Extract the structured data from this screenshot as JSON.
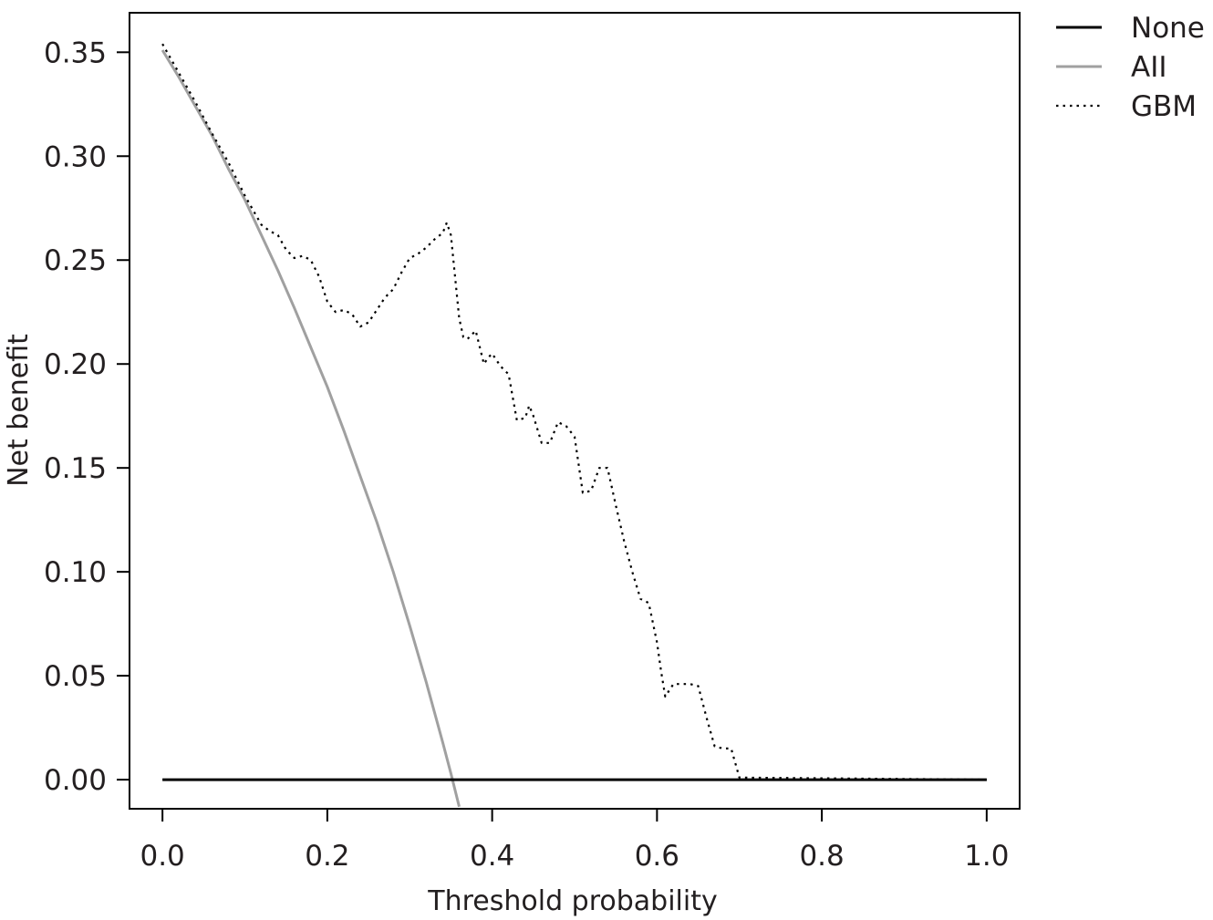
{
  "chart_data": {
    "type": "line",
    "xlabel": "Threshold probability",
    "ylabel": "Net benefit",
    "xlim": [
      -0.04,
      1.04
    ],
    "ylim": [
      -0.014,
      0.369
    ],
    "xticks": [
      0.0,
      0.2,
      0.4,
      0.6,
      0.8,
      1.0
    ],
    "xtick_labels": [
      "0.0",
      "0.2",
      "0.4",
      "0.6",
      "0.8",
      "1.0"
    ],
    "yticks": [
      0.0,
      0.05,
      0.1,
      0.15,
      0.2,
      0.25,
      0.3,
      0.35
    ],
    "ytick_labels": [
      "0.00",
      "0.05",
      "0.10",
      "0.15",
      "0.20",
      "0.25",
      "0.30",
      "0.35"
    ],
    "grid": false,
    "legend_position": "outside-top-right",
    "series": [
      {
        "name": "None",
        "color": "#000000",
        "style": "solid",
        "x": [
          0.0,
          1.0
        ],
        "y": [
          0.0,
          0.0
        ]
      },
      {
        "name": "AII",
        "color": "#a0a0a0",
        "style": "solid",
        "x": [
          0.0,
          0.02,
          0.04,
          0.06,
          0.08,
          0.1,
          0.12,
          0.14,
          0.16,
          0.18,
          0.2,
          0.22,
          0.24,
          0.26,
          0.28,
          0.3,
          0.32,
          0.34,
          0.35,
          0.36
        ],
        "y": [
          0.351,
          0.338,
          0.324,
          0.31,
          0.294,
          0.279,
          0.262,
          0.245,
          0.227,
          0.208,
          0.189,
          0.168,
          0.146,
          0.124,
          0.1,
          0.074,
          0.047,
          0.018,
          0.003,
          -0.013
        ]
      },
      {
        "name": "GBM",
        "color": "#000000",
        "style": "dotted",
        "x": [
          0.0,
          0.02,
          0.04,
          0.06,
          0.08,
          0.1,
          0.12,
          0.13,
          0.14,
          0.15,
          0.16,
          0.17,
          0.18,
          0.19,
          0.2,
          0.21,
          0.22,
          0.23,
          0.24,
          0.25,
          0.26,
          0.27,
          0.28,
          0.29,
          0.3,
          0.31,
          0.32,
          0.33,
          0.34,
          0.345,
          0.35,
          0.36,
          0.365,
          0.37,
          0.38,
          0.39,
          0.395,
          0.4,
          0.41,
          0.42,
          0.43,
          0.44,
          0.445,
          0.45,
          0.46,
          0.47,
          0.48,
          0.49,
          0.5,
          0.51,
          0.52,
          0.53,
          0.54,
          0.55,
          0.56,
          0.57,
          0.58,
          0.59,
          0.6,
          0.605,
          0.61,
          0.62,
          0.63,
          0.64,
          0.65,
          0.66,
          0.67,
          0.68,
          0.69,
          0.7,
          1.0
        ],
        "y": [
          0.354,
          0.34,
          0.326,
          0.311,
          0.297,
          0.281,
          0.267,
          0.264,
          0.262,
          0.255,
          0.251,
          0.252,
          0.25,
          0.242,
          0.23,
          0.225,
          0.226,
          0.224,
          0.218,
          0.22,
          0.226,
          0.232,
          0.236,
          0.244,
          0.251,
          0.253,
          0.256,
          0.26,
          0.263,
          0.268,
          0.262,
          0.222,
          0.213,
          0.212,
          0.216,
          0.2,
          0.203,
          0.205,
          0.199,
          0.195,
          0.173,
          0.174,
          0.18,
          0.175,
          0.162,
          0.162,
          0.172,
          0.17,
          0.165,
          0.138,
          0.139,
          0.15,
          0.15,
          0.132,
          0.115,
          0.1,
          0.087,
          0.085,
          0.066,
          0.052,
          0.04,
          0.046,
          0.046,
          0.046,
          0.045,
          0.03,
          0.016,
          0.015,
          0.015,
          0.001,
          0.0
        ]
      }
    ]
  }
}
